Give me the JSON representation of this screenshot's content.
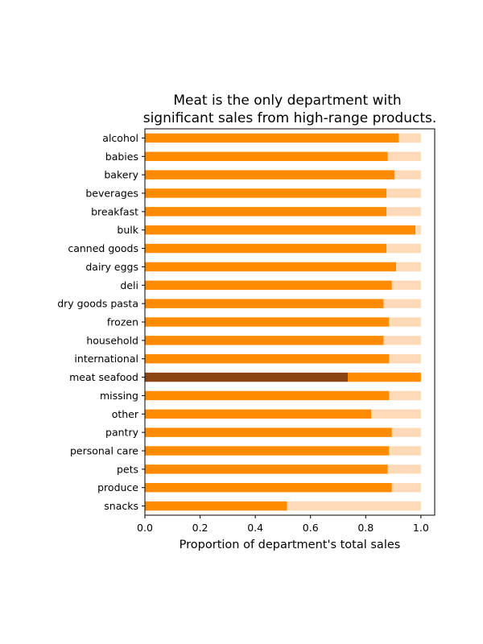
{
  "chart_data": {
    "type": "bar",
    "orientation": "horizontal",
    "stacked": true,
    "title_lines": [
      "Meat is the only department with",
      "significant sales from high-range products."
    ],
    "xlabel": "Proportion of department's total sales",
    "ylabel": "",
    "xlim": [
      0,
      1.05
    ],
    "xticks": [
      "0.0",
      "0.2",
      "0.4",
      "0.6",
      "0.8",
      "1.0"
    ],
    "grid": false,
    "categories": [
      "alcohol",
      "babies",
      "bakery",
      "beverages",
      "breakfast",
      "bulk",
      "canned goods",
      "dairy eggs",
      "deli",
      "dry goods pasta",
      "frozen",
      "household",
      "international",
      "meat seafood",
      "missing",
      "other",
      "pantry",
      "personal care",
      "pets",
      "produce",
      "snacks"
    ],
    "series": [
      {
        "color": "#8B4513",
        "values": [
          0,
          0,
          0,
          0,
          0,
          0,
          0,
          0,
          0,
          0,
          0,
          0,
          0,
          0.735,
          0,
          0,
          0,
          0,
          0,
          0,
          0
        ]
      },
      {
        "color": "#FF8C00",
        "values": [
          0.92,
          0.88,
          0.905,
          0.875,
          0.875,
          0.98,
          0.875,
          0.91,
          0.895,
          0.865,
          0.885,
          0.865,
          0.885,
          0.265,
          0.885,
          0.82,
          0.895,
          0.885,
          0.88,
          0.895,
          0.515
        ]
      },
      {
        "color": "#FFDAB9",
        "values": [
          0.08,
          0.12,
          0.095,
          0.125,
          0.125,
          0.02,
          0.125,
          0.09,
          0.105,
          0.135,
          0.115,
          0.135,
          0.115,
          0,
          0.115,
          0.18,
          0.105,
          0.115,
          0.12,
          0.105,
          0.485
        ]
      }
    ]
  }
}
